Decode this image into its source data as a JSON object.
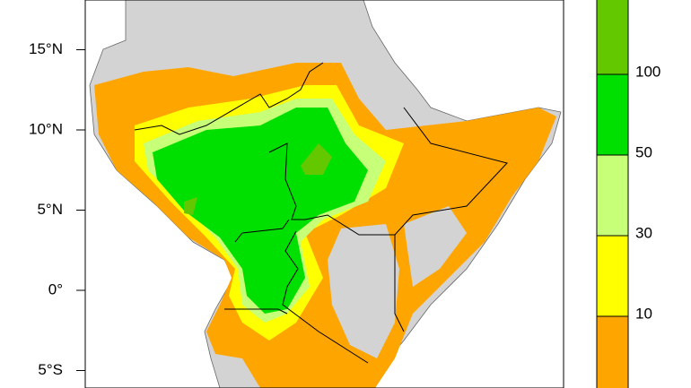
{
  "map": {
    "lat_ticks": [
      {
        "value": 15,
        "label": "15°N"
      },
      {
        "value": 10,
        "label": "10°N"
      },
      {
        "value": 5,
        "label": "5°N"
      },
      {
        "value": 0,
        "label": "0°"
      },
      {
        "value": -5,
        "label": "5°S"
      }
    ],
    "colorbar": {
      "levels": [
        10,
        30,
        50,
        100
      ],
      "colors": [
        "#ffa500",
        "#ffff00",
        "#c8ff78",
        "#00e000",
        "#64c800"
      ]
    }
  }
}
